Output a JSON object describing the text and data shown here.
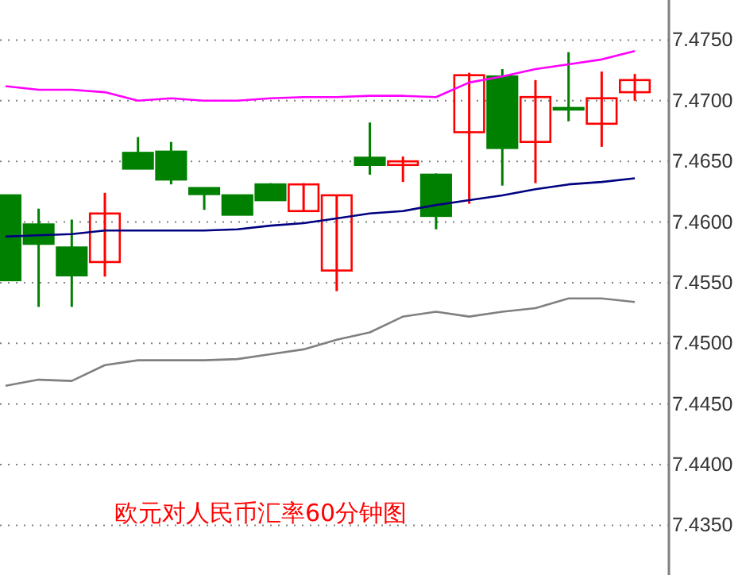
{
  "chart_data": {
    "type": "candlestick",
    "annotations": [
      "欧元对人民币汇率60分钟图"
    ],
    "categories": [
      null,
      null,
      null,
      null,
      null,
      null,
      null,
      null,
      null,
      null,
      null,
      null,
      null,
      null,
      null,
      null,
      null,
      null,
      null,
      null
    ],
    "ohlc": [
      [
        7.4622,
        7.4622,
        7.4552,
        7.4552
      ],
      [
        7.4598,
        7.4611,
        7.453,
        7.4582
      ],
      [
        7.4579,
        7.4602,
        7.453,
        7.4556
      ],
      [
        7.4567,
        7.4624,
        7.4555,
        7.4607
      ],
      [
        7.4657,
        7.467,
        7.4644,
        7.4644
      ],
      [
        7.4658,
        7.4666,
        7.4631,
        7.4635
      ],
      [
        7.4628,
        7.4628,
        7.461,
        7.4623
      ],
      [
        7.4622,
        7.4622,
        7.4606,
        7.4606
      ],
      [
        7.4631,
        7.4632,
        7.4618,
        7.4618
      ],
      [
        7.4609,
        7.4632,
        7.4609,
        7.4631
      ],
      [
        7.456,
        7.4622,
        7.4543,
        7.4622
      ],
      [
        7.4653,
        7.4682,
        7.4639,
        7.4647
      ],
      [
        7.4647,
        7.4654,
        7.4633,
        7.465
      ],
      [
        7.4639,
        7.464,
        7.4594,
        7.4605
      ],
      [
        7.4674,
        7.4723,
        7.4615,
        7.4721
      ],
      [
        7.472,
        7.4726,
        7.463,
        7.4661
      ],
      [
        7.4666,
        7.4717,
        7.4632,
        7.4703
      ],
      [
        7.4694,
        7.474,
        7.4683,
        7.4694
      ],
      [
        7.4681,
        7.4724,
        7.4662,
        7.4702
      ],
      [
        7.4707,
        7.4722,
        7.47,
        7.4717
      ]
    ],
    "colors": [
      "#008000",
      "#008000",
      "#008000",
      "#ff0000",
      "#008000",
      "#008000",
      "#008000",
      "#008000",
      "#008000",
      "#ff0000",
      "#ff0000",
      "#008000",
      "#ff0000",
      "#008000",
      "#ff0000",
      "#008000",
      "#ff0000",
      "#008000",
      "#ff0000",
      "#ff0000"
    ],
    "series": [
      {
        "type": "line",
        "color": "#ff00ff",
        "values": [
          7.4712,
          7.4709,
          7.4709,
          7.4707,
          7.47,
          7.4702,
          7.47,
          7.47,
          7.4702,
          7.4703,
          7.4703,
          7.4704,
          7.4704,
          7.4703,
          7.4715,
          7.472,
          7.4726,
          7.473,
          7.4734,
          7.4741
        ]
      },
      {
        "type": "line",
        "color": "#000080",
        "values": [
          7.4588,
          7.4589,
          7.459,
          7.4593,
          7.4593,
          7.4593,
          7.4593,
          7.4594,
          7.4597,
          7.4599,
          7.4603,
          7.4607,
          7.4609,
          7.4614,
          7.4618,
          7.4622,
          7.4627,
          7.4631,
          7.4633,
          7.4636
        ]
      },
      {
        "type": "line",
        "color": "#808080",
        "values": [
          7.4465,
          7.447,
          7.4469,
          7.4482,
          7.4486,
          7.4486,
          7.4486,
          7.4487,
          7.4491,
          7.4495,
          7.4503,
          7.4509,
          7.4522,
          7.4526,
          7.4522,
          7.4526,
          7.4529,
          7.4537,
          7.4537,
          7.4534
        ]
      }
    ],
    "ylim": [
      7.4309,
      7.4783
    ],
    "yticks": [
      {
        "value": 7.435,
        "label": "7.4350"
      },
      {
        "value": 7.44,
        "label": "7.4400"
      },
      {
        "value": 7.445,
        "label": "7.4450"
      },
      {
        "value": 7.45,
        "label": "7.4500"
      },
      {
        "value": 7.455,
        "label": "7.4550"
      },
      {
        "value": 7.46,
        "label": "7.4600"
      },
      {
        "value": 7.465,
        "label": "7.4650"
      },
      {
        "value": 7.47,
        "label": "7.4700"
      },
      {
        "value": 7.475,
        "label": "7.4750"
      }
    ],
    "grid": "y",
    "tick_labels": "y"
  }
}
